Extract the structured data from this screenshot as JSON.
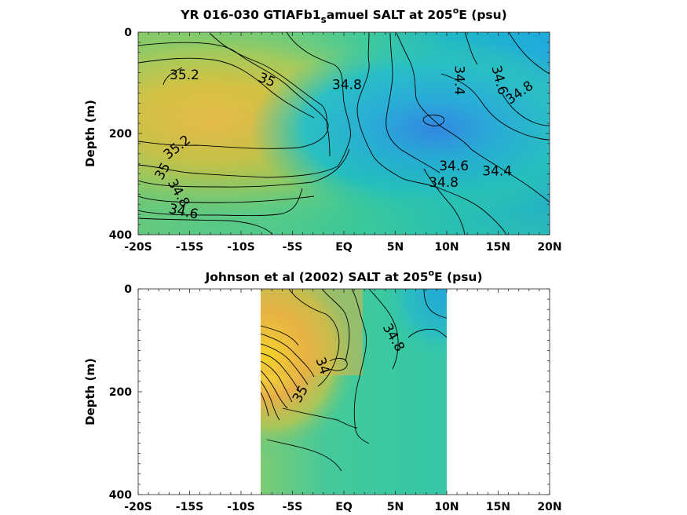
{
  "chart_data": [
    {
      "type": "heatmap",
      "title_main": "YR 016-030 GTIAFb1",
      "title_sub": "s",
      "title_rest": "amuel SALT at 205",
      "title_sup": "o",
      "title_end": "E (psu)",
      "xlabel": "",
      "ylabel": "Depth (m)",
      "x_tick_labels": [
        "-20S",
        "-15S",
        "-10S",
        "-5S",
        "EQ",
        "5N",
        "10N",
        "15N",
        "20N"
      ],
      "x_tick_values": [
        -20,
        -15,
        -10,
        -5,
        0,
        5,
        10,
        15,
        20
      ],
      "xlim": [
        -20,
        20
      ],
      "y_tick_labels": [
        "0",
        "200",
        "400"
      ],
      "y_tick_values": [
        0,
        200,
        400
      ],
      "ylim": [
        0,
        400
      ],
      "y_reversed": true,
      "contour_labels": [
        {
          "text": "35.2",
          "x": -15.5,
          "y": 85
        },
        {
          "text": "35",
          "x": -7.5,
          "y": 95
        },
        {
          "text": "34.8",
          "x": 0.3,
          "y": 105
        },
        {
          "text": "34.4",
          "x": 11.2,
          "y": 95
        },
        {
          "text": "34.6",
          "x": 15.1,
          "y": 95
        },
        {
          "text": "34.8",
          "x": 17.1,
          "y": 120
        },
        {
          "text": "35.2",
          "x": -16.2,
          "y": 228
        },
        {
          "text": "35",
          "x": -17.6,
          "y": 275
        },
        {
          "text": "34.8",
          "x": -16.1,
          "y": 318
        },
        {
          "text": "34.6",
          "x": -15.6,
          "y": 355
        },
        {
          "text": "34.6",
          "x": 10.7,
          "y": 265
        },
        {
          "text": "34.4",
          "x": 14.9,
          "y": 275
        },
        {
          "text": "34.8",
          "x": 9.7,
          "y": 298
        }
      ]
    },
    {
      "type": "heatmap",
      "title_main": "Johnson et al (2002) SALT at 205",
      "title_sup": "o",
      "title_end": "E (psu)",
      "xlabel": "",
      "ylabel": "Depth (m)",
      "x_tick_labels": [
        "-20S",
        "-15S",
        "-10S",
        "-5S",
        "EQ",
        "5N",
        "10N",
        "15N",
        "20N"
      ],
      "x_tick_values": [
        -20,
        -15,
        -10,
        -5,
        0,
        5,
        10,
        15,
        20
      ],
      "xlim": [
        -20,
        20
      ],
      "y_tick_labels": [
        "0",
        "200",
        "400"
      ],
      "y_tick_values": [
        0,
        200,
        400
      ],
      "ylim": [
        0,
        400
      ],
      "y_reversed": true,
      "data_xrange": [
        -8,
        10
      ],
      "contour_labels": [
        {
          "text": "34.8",
          "x": 4.8,
          "y": 95
        },
        {
          "text": "34",
          "x": -2.1,
          "y": 150
        },
        {
          "text": "35",
          "x": -4.2,
          "y": 205
        }
      ]
    }
  ],
  "colors": {
    "high_salt": "#f7e01a",
    "warm": "#e8b84a",
    "mid": "#3ac79a",
    "low": "#2fa8d9",
    "lowest": "#2a8fe0"
  }
}
